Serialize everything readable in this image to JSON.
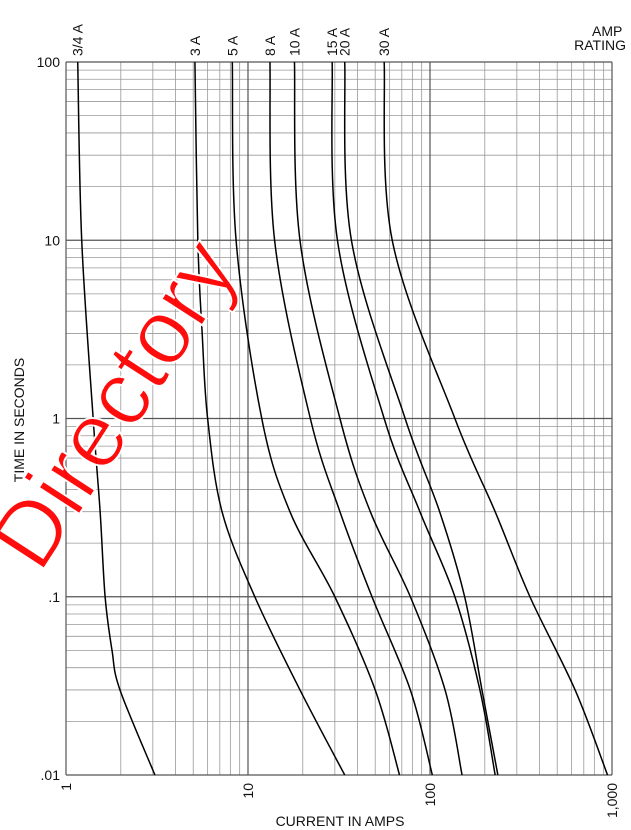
{
  "chart_data": {
    "type": "line",
    "annotations": [
      "AMP RATING",
      "Directory"
    ],
    "xlabel": "CURRENT IN AMPS",
    "ylabel": "TIME IN SECONDS",
    "log_x": true,
    "log_y": true,
    "grid": true,
    "xlim": [
      1,
      1000
    ],
    "ylim": [
      0.01,
      100
    ],
    "xticks": [
      1,
      10,
      100,
      {
        "value": 1000,
        "label": "1,000"
      }
    ],
    "yticks": [
      {
        "value": 0.01,
        "label": ".01"
      },
      {
        "value": 0.1,
        "label": ".1"
      },
      1,
      10,
      100
    ],
    "series": [
      {
        "name": "3/4 A",
        "color": "#000000",
        "x": [
          1.16,
          1.22,
          1.41,
          1.54,
          1.64,
          1.79,
          1.98,
          3.08
        ],
        "values": [
          100,
          10,
          1,
          0.3,
          0.1,
          0.05,
          0.03,
          0.01
        ]
      },
      {
        "name": "3 A",
        "color": "#000000",
        "x": [
          5.11,
          5.3,
          5.6,
          6.0,
          7.2,
          10.9,
          19.3,
          34
        ],
        "values": [
          100,
          10,
          3,
          1,
          0.3,
          0.1,
          0.03,
          0.01
        ]
      },
      {
        "name": "5 A",
        "color": "#000000",
        "x": [
          8.2,
          8.6,
          11.9,
          17,
          30,
          50,
          68
        ],
        "values": [
          100,
          10,
          1,
          0.3,
          0.1,
          0.03,
          0.01
        ]
      },
      {
        "name": "8 A",
        "color": "#000000",
        "x": [
          13.2,
          14,
          22,
          32,
          48,
          78,
          103
        ],
        "values": [
          100,
          10,
          1,
          0.3,
          0.1,
          0.03,
          0.01
        ]
      },
      {
        "name": "10 A",
        "color": "#000000",
        "x": [
          18,
          19.3,
          32,
          47,
          78,
          121,
          150
        ],
        "values": [
          100,
          10,
          1,
          0.3,
          0.1,
          0.03,
          0.01
        ]
      },
      {
        "name": "15 A",
        "color": "#000000",
        "x": [
          29,
          31,
          56,
          88,
          137,
          188,
          228
        ],
        "values": [
          100,
          10,
          1,
          0.3,
          0.1,
          0.03,
          0.01
        ]
      },
      {
        "name": "20 A",
        "color": "#000000",
        "x": [
          34,
          37,
          73,
          113,
          155,
          193,
          236
        ],
        "values": [
          100,
          10,
          1,
          0.3,
          0.1,
          0.03,
          0.01
        ]
      },
      {
        "name": "30 A",
        "color": "#000000",
        "x": [
          56,
          62,
          137,
          228,
          354,
          627,
          945
        ],
        "values": [
          100,
          10,
          1,
          0.3,
          0.1,
          0.03,
          0.01
        ]
      }
    ]
  }
}
